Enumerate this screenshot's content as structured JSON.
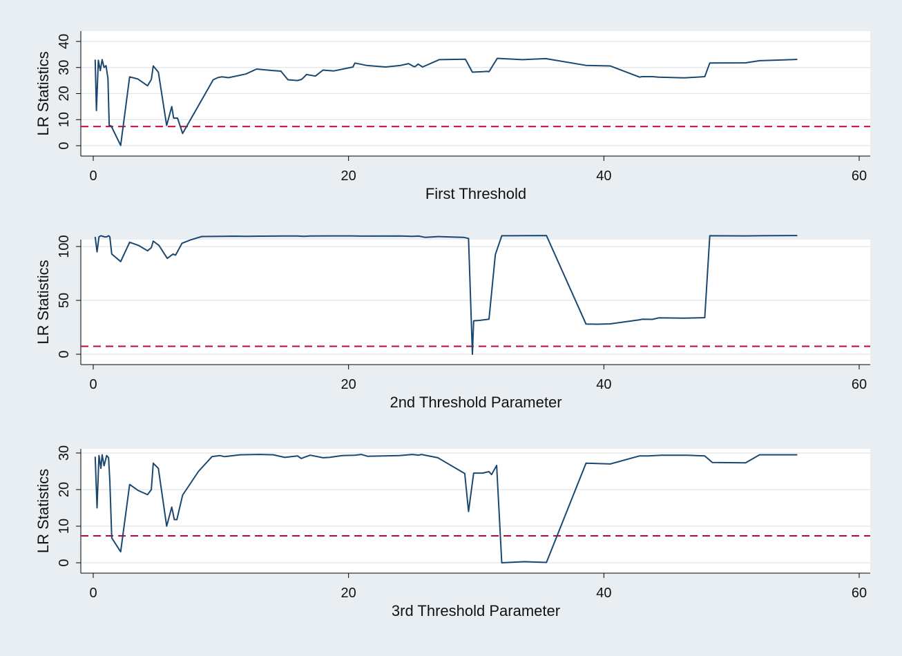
{
  "colors": {
    "background": "#e9eef2",
    "plot_bg": "#ffffff",
    "series": "#1a476f",
    "critical_line": "#c10534",
    "grid": "#dfe5ea",
    "axis": "#000000"
  },
  "chart_data": [
    {
      "type": "line",
      "title": "",
      "xlabel": "First Threshold",
      "ylabel": "LR Statistics",
      "xlim": [
        0,
        60
      ],
      "ylim": [
        0,
        40
      ],
      "xticks": [
        0,
        20,
        40,
        60
      ],
      "yticks": [
        0,
        10,
        20,
        30,
        40
      ],
      "grid": true,
      "critical_value": 7.35,
      "series": [
        {
          "x": [
            0.15,
            0.25,
            0.4,
            0.55,
            0.7,
            0.85,
            1.0,
            1.15,
            1.25,
            1.4,
            2.15,
            2.85,
            3.5,
            4.25,
            4.55,
            4.7,
            5.1,
            5.75,
            6.15,
            6.3,
            6.6,
            7.0,
            9.4,
            9.8,
            10.1,
            10.6,
            11.95,
            12.8,
            14.1,
            14.7,
            15.25,
            16.0,
            16.3,
            16.45,
            16.7,
            17.4,
            18.0,
            18.85,
            20.35,
            20.4,
            20.5,
            20.9,
            21.4,
            22.9,
            24.1,
            24.7,
            25.1,
            25.2,
            25.45,
            25.8,
            27.1,
            29.15,
            29.7,
            30.55,
            30.8,
            31.0,
            31.65,
            33.6,
            35.45,
            38.6,
            40.5,
            42.8,
            43.0,
            43.8,
            44.3,
            46.3,
            47.9,
            48.3,
            51.1,
            52.2,
            54.1,
            55.15
          ],
          "y": [
            33,
            13.5,
            32.8,
            28.8,
            33,
            30,
            30.7,
            25.8,
            7.8,
            7.6,
            0.1,
            26.4,
            25.6,
            23,
            25.4,
            30.6,
            28.2,
            7.8,
            15,
            10.6,
            10.6,
            4.7,
            25.3,
            26.2,
            26.4,
            26.1,
            27.5,
            29.4,
            28.8,
            28.6,
            25.3,
            25,
            25.4,
            26,
            27.3,
            26.7,
            29,
            28.7,
            30.2,
            30.8,
            31.7,
            31.3,
            30.8,
            30.2,
            30.8,
            31.5,
            30.4,
            30.3,
            31.3,
            30.2,
            33,
            33.2,
            28.2,
            28.4,
            28.5,
            28.4,
            33.5,
            33,
            33.4,
            30.8,
            30.6,
            26.3,
            26.5,
            26.5,
            26.3,
            26,
            26.5,
            31.7,
            31.8,
            32.6,
            32.9,
            33.1
          ]
        }
      ]
    },
    {
      "type": "line",
      "title": "",
      "xlabel": "2nd Threshold Parameter",
      "ylabel": "LR Statistics",
      "xlim": [
        0,
        60
      ],
      "ylim": [
        0,
        115
      ],
      "xticks": [
        0,
        20,
        40,
        60
      ],
      "yticks": [
        0,
        50,
        100
      ],
      "grid": true,
      "critical_value": 7.35,
      "series": [
        {
          "x": [
            0.15,
            0.3,
            0.45,
            0.6,
            0.9,
            1.05,
            1.2,
            1.3,
            1.45,
            2.15,
            2.85,
            3.55,
            4.25,
            4.55,
            4.7,
            5.15,
            5.8,
            6.25,
            6.45,
            6.95,
            7.6,
            8.5,
            9.9,
            10.1,
            11.0,
            12.0,
            13.0,
            15.0,
            16.0,
            16.5,
            17.0,
            19.0,
            20.0,
            21.0,
            24.0,
            25.0,
            25.5,
            26.0,
            27.0,
            29.0,
            29.4,
            29.7,
            29.8,
            30.3,
            31.0,
            31.5,
            32.0,
            33.0,
            35.5,
            38.6,
            39.5,
            40.5,
            42.8,
            43.0,
            43.8,
            44.3,
            46.3,
            47.9,
            48.3,
            51.1,
            52.2,
            55.15
          ],
          "y": [
            109,
            95,
            109,
            110,
            109,
            109,
            110,
            109,
            93,
            86,
            104,
            101,
            96,
            99,
            105,
            101,
            89,
            93,
            92,
            103,
            106,
            109.3,
            109.5,
            109.5,
            109.6,
            109.4,
            109.6,
            109.8,
            109.8,
            109.5,
            109.8,
            109.9,
            109.9,
            109.7,
            109.8,
            109.5,
            109.7,
            108.5,
            109.2,
            108.5,
            107.5,
            0,
            31,
            31.5,
            32.5,
            92.5,
            110,
            110,
            110.2,
            28,
            27.9,
            28.2,
            32,
            32.5,
            32.4,
            33.8,
            33.5,
            34,
            110,
            109.9,
            110,
            110.2
          ]
        }
      ]
    },
    {
      "type": "line",
      "title": "",
      "xlabel": "3rd Threshold Parameter",
      "ylabel": "LR Statistics",
      "xlim": [
        0,
        60
      ],
      "ylim": [
        0,
        32
      ],
      "xticks": [
        0,
        20,
        40,
        60
      ],
      "yticks": [
        0,
        10,
        20,
        30
      ],
      "grid": true,
      "critical_value": 7.35,
      "series": [
        {
          "x": [
            0.15,
            0.3,
            0.45,
            0.6,
            0.7,
            0.85,
            1.05,
            1.2,
            1.3,
            1.45,
            2.15,
            2.85,
            3.5,
            4.25,
            4.55,
            4.7,
            5.1,
            5.75,
            6.15,
            6.35,
            6.55,
            7.0,
            8.25,
            9.3,
            9.9,
            10.3,
            11.5,
            13.0,
            14.1,
            15.0,
            16.0,
            16.3,
            16.5,
            17.0,
            18.0,
            18.5,
            19.5,
            20.5,
            21.0,
            21.5,
            24.0,
            25.0,
            25.5,
            25.7,
            27.0,
            29.1,
            29.4,
            29.8,
            30.5,
            31.0,
            31.2,
            31.6,
            32.0,
            33.8,
            35.5,
            38.6,
            40.5,
            42.8,
            43.5,
            44.5,
            46.5,
            47.9,
            48.5,
            51.1,
            52.2,
            55.15
          ],
          "y": [
            29,
            15,
            29.3,
            25.8,
            29.5,
            26.5,
            29.3,
            28.7,
            22.5,
            6.8,
            3,
            21.4,
            19.8,
            18.6,
            20,
            27.2,
            25.8,
            10,
            15.2,
            11.8,
            11.8,
            18.5,
            25,
            29,
            29.3,
            29,
            29.5,
            29.6,
            29.5,
            28.8,
            29.2,
            28.5,
            28.8,
            29.4,
            28.7,
            28.8,
            29.3,
            29.4,
            29.6,
            29.1,
            29.3,
            29.6,
            29.4,
            29.6,
            28.7,
            24.4,
            14,
            24.5,
            24.5,
            24.9,
            24.1,
            26.6,
            0,
            0.3,
            0.1,
            27.2,
            27,
            29.2,
            29.2,
            29.4,
            29.4,
            29.2,
            27.4,
            27.3,
            29.5,
            29.5
          ]
        }
      ]
    }
  ]
}
